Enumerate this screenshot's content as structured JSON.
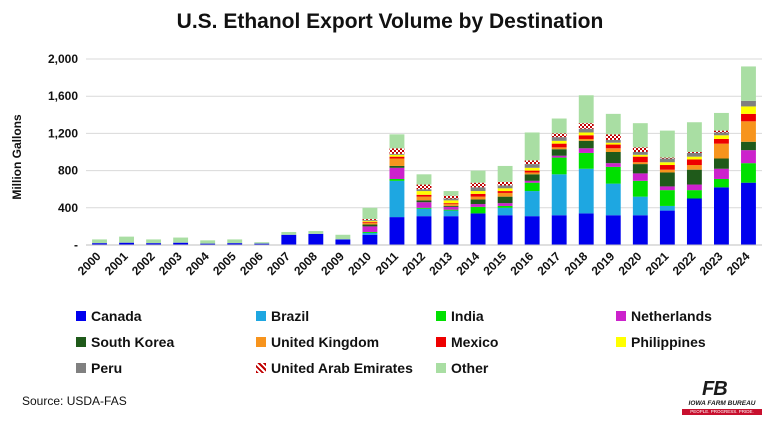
{
  "chart_data": {
    "type": "bar",
    "stacked": true,
    "title": "U.S. Ethanol Export Volume by Destination",
    "xlabel": "",
    "ylabel": "Million Gallons",
    "ylim": [
      0,
      2000
    ],
    "yticks": [
      0,
      400,
      800,
      1200,
      1600,
      2000
    ],
    "yticklabels": [
      "-",
      "400",
      "800",
      "1,200",
      "1,600",
      "2,000"
    ],
    "grid": true,
    "legend_position": "bottom",
    "categories": [
      "2000",
      "2001",
      "2002",
      "2003",
      "2004",
      "2005",
      "2006",
      "2007",
      "2008",
      "2009",
      "2010",
      "2011",
      "2012",
      "2013",
      "2014",
      "2015",
      "2016",
      "2017",
      "2018",
      "2019",
      "2020",
      "2021",
      "2022",
      "2023",
      "2024"
    ],
    "series": [
      {
        "name": "Canada",
        "color": "#0000ee",
        "values": [
          20,
          25,
          20,
          25,
          15,
          20,
          15,
          110,
          120,
          60,
          110,
          300,
          310,
          310,
          340,
          320,
          310,
          320,
          340,
          320,
          320,
          370,
          500,
          620,
          670
        ]
      },
      {
        "name": "Brazil",
        "color": "#1ea7e1",
        "values": [
          0,
          0,
          0,
          0,
          0,
          0,
          0,
          0,
          0,
          0,
          20,
          390,
          80,
          60,
          0,
          80,
          270,
          440,
          480,
          340,
          200,
          50,
          0,
          0,
          0
        ]
      },
      {
        "name": "India",
        "color": "#00e000",
        "values": [
          0,
          0,
          0,
          0,
          0,
          0,
          0,
          0,
          0,
          0,
          10,
          20,
          10,
          10,
          70,
          20,
          90,
          180,
          170,
          180,
          170,
          170,
          90,
          90,
          210
        ]
      },
      {
        "name": "Netherlands",
        "color": "#cc22cc",
        "values": [
          0,
          0,
          0,
          0,
          0,
          0,
          0,
          0,
          0,
          0,
          60,
          120,
          60,
          30,
          30,
          30,
          20,
          20,
          50,
          40,
          80,
          40,
          60,
          110,
          140
        ]
      },
      {
        "name": "South Korea",
        "color": "#1f5a1a",
        "values": [
          0,
          0,
          0,
          0,
          0,
          0,
          0,
          0,
          0,
          0,
          20,
          20,
          20,
          10,
          50,
          70,
          70,
          70,
          80,
          120,
          100,
          150,
          160,
          110,
          90
        ]
      },
      {
        "name": "United Kingdom",
        "color": "#f7941d",
        "values": [
          0,
          0,
          0,
          0,
          0,
          0,
          0,
          0,
          0,
          0,
          20,
          80,
          40,
          20,
          30,
          40,
          20,
          20,
          20,
          40,
          20,
          30,
          50,
          160,
          220
        ]
      },
      {
        "name": "Mexico",
        "color": "#ee0000",
        "values": [
          0,
          0,
          0,
          0,
          0,
          0,
          0,
          0,
          0,
          0,
          10,
          20,
          20,
          10,
          30,
          20,
          20,
          40,
          40,
          40,
          60,
          50,
          60,
          50,
          80
        ]
      },
      {
        "name": "Philippines",
        "color": "#ffff00",
        "values": [
          0,
          0,
          0,
          0,
          0,
          0,
          0,
          0,
          0,
          0,
          10,
          20,
          40,
          30,
          30,
          30,
          30,
          30,
          30,
          20,
          20,
          30,
          30,
          40,
          80
        ]
      },
      {
        "name": "Peru",
        "color": "#808080",
        "values": [
          0,
          0,
          0,
          0,
          0,
          0,
          0,
          0,
          0,
          0,
          10,
          10,
          20,
          20,
          40,
          30,
          40,
          40,
          40,
          30,
          30,
          40,
          40,
          30,
          60
        ]
      },
      {
        "name": "United Arab Emirates",
        "color": "#c00000",
        "pattern": true,
        "values": [
          0,
          0,
          0,
          0,
          0,
          0,
          0,
          0,
          0,
          0,
          10,
          60,
          50,
          30,
          50,
          40,
          40,
          40,
          60,
          60,
          50,
          10,
          10,
          20,
          0
        ]
      },
      {
        "name": "Other",
        "color": "#a9dea3",
        "values": [
          40,
          65,
          40,
          55,
          35,
          40,
          15,
          30,
          30,
          50,
          120,
          150,
          110,
          50,
          130,
          170,
          300,
          160,
          300,
          220,
          260,
          290,
          320,
          190,
          370
        ]
      }
    ],
    "source": "Source: USDA-FAS"
  },
  "logo": {
    "text": "IOWA FARM BUREAU",
    "tagline": "PEOPLE. PROGRESS. PRIDE."
  }
}
